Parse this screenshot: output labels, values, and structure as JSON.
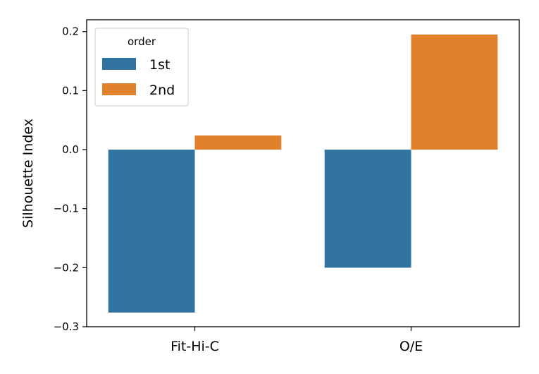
{
  "chart_data": {
    "type": "bar",
    "categories": [
      "Fit-Hi-C",
      "O/E"
    ],
    "series": [
      {
        "name": "1st",
        "values": [
          -0.276,
          -0.2
        ],
        "color": "#3274a1"
      },
      {
        "name": "2nd",
        "values": [
          0.024,
          0.195
        ],
        "color": "#e1812c"
      }
    ],
    "xlabel": "",
    "ylabel": "Silhouette Index",
    "ylim": [
      -0.3,
      0.22
    ],
    "yticks": [
      -0.3,
      -0.2,
      -0.1,
      0.0,
      0.1,
      0.2
    ],
    "ytick_labels": [
      "−0.3",
      "−0.2",
      "−0.1",
      "0.0",
      "0.1",
      "0.2"
    ],
    "grid": false,
    "legend": {
      "title": "order",
      "placement": "top-left"
    }
  }
}
